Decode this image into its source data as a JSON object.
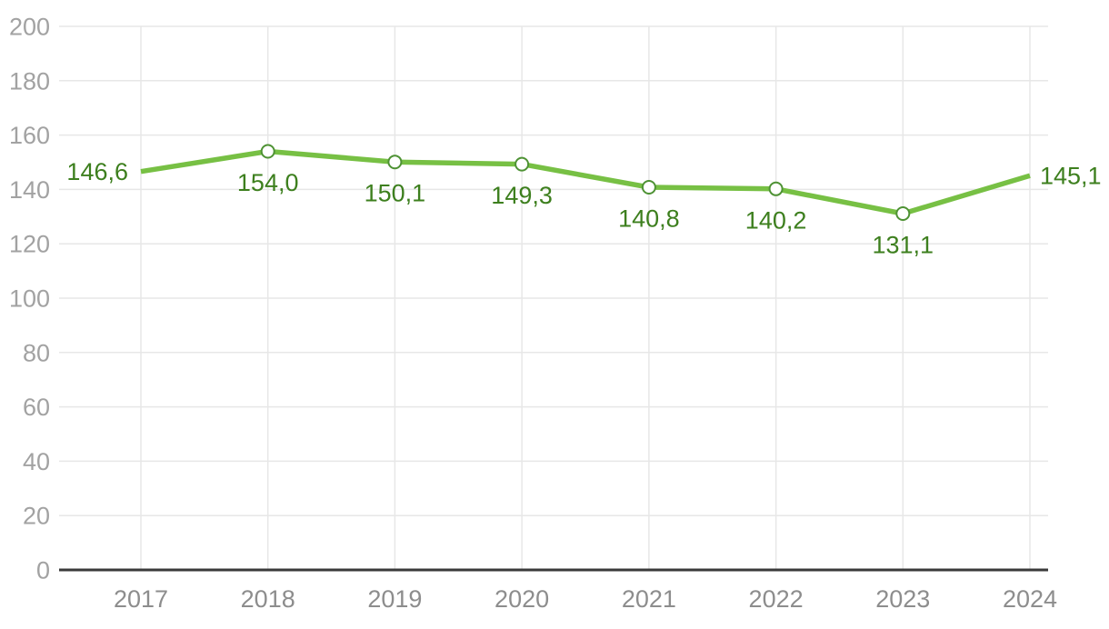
{
  "chart_data": {
    "type": "line",
    "title": "",
    "subtitle": "",
    "xlabel": "",
    "ylabel": "",
    "categories": [
      "2017",
      "2018",
      "2019",
      "2020",
      "2021",
      "2022",
      "2023",
      "2024"
    ],
    "series": [
      {
        "name": "series-1",
        "values": [
          146.6,
          154.0,
          150.1,
          149.3,
          140.8,
          140.2,
          131.1,
          145.1
        ],
        "value_labels": [
          "146,6",
          "154,0",
          "150,1",
          "149,3",
          "140,8",
          "140,2",
          "131,1",
          "145,1"
        ],
        "label_positions": [
          "left",
          "below",
          "below",
          "below",
          "below",
          "below",
          "below",
          "right"
        ],
        "markers": [
          false,
          true,
          true,
          true,
          true,
          true,
          true,
          false
        ]
      }
    ],
    "ylim": [
      0,
      200
    ],
    "ytick_step": 20,
    "ytick_labels": [
      "0",
      "20",
      "40",
      "60",
      "80",
      "100",
      "120",
      "140",
      "160",
      "180",
      "200"
    ],
    "decimal_separator": ",",
    "grid": true,
    "legend": "none",
    "colors": {
      "line": "#77c044",
      "marker_stroke": "#4e9234",
      "marker_fill": "#ffffff",
      "data_label": "#3d7f1e",
      "y_tick_label": "#a2a2a2",
      "x_tick_label": "#8d8d8d",
      "gridline": "#e7e7e7",
      "axis_line": "#3a3a3a",
      "background": "#ffffff"
    }
  }
}
